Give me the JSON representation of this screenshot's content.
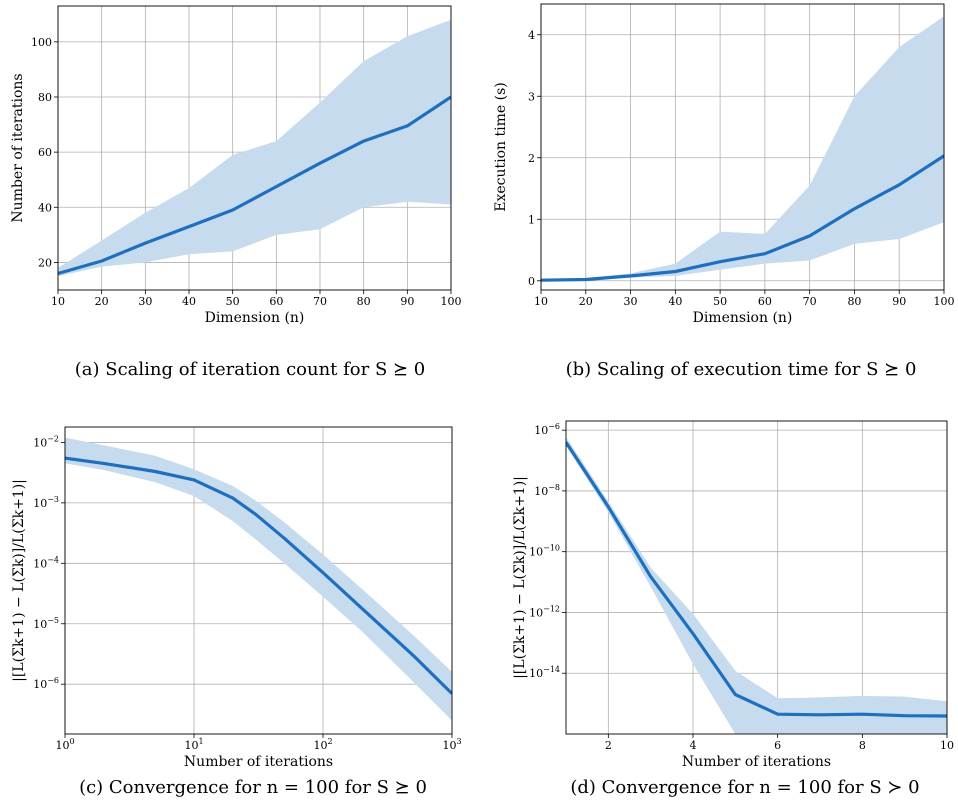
{
  "colors": {
    "line": "#1f6fbf",
    "band": "#c6dcee",
    "grid": "#b0b0b0"
  },
  "captions": [
    "(a) Scaling of iteration count for S ⪰ 0",
    "(b) Scaling of execution time for S ⪰ 0",
    "(c) Convergence for n = 100 for S ⪰ 0",
    "(d) Convergence for n = 100 for S ≻ 0"
  ],
  "chart_data": [
    {
      "type": "line",
      "xlabel": "Dimension (n)",
      "ylabel": "Number of iterations",
      "xlim": [
        10,
        100
      ],
      "ylim": [
        10,
        113
      ],
      "xticks": [
        10,
        20,
        30,
        40,
        50,
        60,
        70,
        80,
        90,
        100
      ],
      "yticks": [
        20,
        40,
        60,
        80,
        100
      ],
      "x": [
        10,
        20,
        30,
        40,
        50,
        60,
        70,
        80,
        90,
        100
      ],
      "mean": [
        16,
        20.5,
        27,
        33,
        39,
        47.5,
        56,
        64,
        69.5,
        80
      ],
      "upper": [
        18,
        28,
        38,
        47,
        59,
        64,
        78,
        93,
        102,
        108
      ],
      "lower": [
        15,
        18.5,
        20,
        23,
        24,
        30,
        32,
        40,
        42,
        41
      ]
    },
    {
      "type": "line",
      "xlabel": "Dimension (n)",
      "ylabel": "Execution time (s)",
      "xlim": [
        10,
        100
      ],
      "ylim": [
        -0.15,
        4.5
      ],
      "xticks": [
        10,
        20,
        30,
        40,
        50,
        60,
        70,
        80,
        90,
        100
      ],
      "yticks": [
        0,
        1,
        2,
        3,
        4
      ],
      "x": [
        10,
        20,
        30,
        40,
        50,
        60,
        70,
        80,
        90,
        100
      ],
      "mean": [
        0.01,
        0.02,
        0.08,
        0.15,
        0.31,
        0.44,
        0.73,
        1.17,
        1.56,
        2.03
      ],
      "upper": [
        0.02,
        0.04,
        0.12,
        0.28,
        0.8,
        0.76,
        1.55,
        3.0,
        3.8,
        4.3
      ],
      "lower": [
        0.0,
        0.01,
        0.05,
        0.08,
        0.18,
        0.28,
        0.33,
        0.6,
        0.68,
        0.95
      ]
    },
    {
      "type": "line",
      "xscale": "log",
      "yscale": "log",
      "xlabel": "Number of iterations",
      "ylabel": "|[L(Σk+1) − L(Σk)]/L(Σk+1)|",
      "xlim": [
        1,
        1000
      ],
      "ylim": [
        1.5e-07,
        0.018
      ],
      "xticks": [
        {
          "value": 1,
          "label": "10",
          "exp": "0"
        },
        {
          "value": 10,
          "label": "10",
          "exp": "1"
        },
        {
          "value": 100,
          "label": "10",
          "exp": "2"
        },
        {
          "value": 1000,
          "label": "10",
          "exp": "3"
        }
      ],
      "yticks": [
        {
          "value": 1e-06,
          "label": "10",
          "exp": "−6"
        },
        {
          "value": 1e-05,
          "label": "10",
          "exp": "−5"
        },
        {
          "value": 0.0001,
          "label": "10",
          "exp": "−4"
        },
        {
          "value": 0.001,
          "label": "10",
          "exp": "−3"
        },
        {
          "value": 0.01,
          "label": "10",
          "exp": "−2"
        }
      ],
      "x": [
        1,
        2,
        5,
        10,
        20,
        30,
        50,
        100,
        200,
        500,
        1000
      ],
      "mean": [
        0.0055,
        0.0045,
        0.0033,
        0.0024,
        0.0012,
        0.00065,
        0.00026,
        7e-05,
        1.8e-05,
        3e-06,
        7e-07
      ],
      "upper": [
        0.012,
        0.009,
        0.006,
        0.0036,
        0.0019,
        0.0011,
        0.00048,
        0.00014,
        3.8e-05,
        6.5e-06,
        1.6e-06
      ],
      "lower": [
        0.0045,
        0.0035,
        0.0022,
        0.0013,
        0.0005,
        0.00025,
        0.0001,
        2.8e-05,
        7.5e-06,
        1.1e-06,
        2.5e-07
      ]
    },
    {
      "type": "line",
      "yscale": "log",
      "xlabel": "Number of iterations",
      "ylabel": "|[L(Σk+1) − L(Σk)]/L(Σk+1)|",
      "xlim": [
        1,
        10
      ],
      "ylim": [
        1e-16,
        2e-06
      ],
      "xticks": [
        {
          "value": 2,
          "label": "2"
        },
        {
          "value": 4,
          "label": "4"
        },
        {
          "value": 6,
          "label": "6"
        },
        {
          "value": 8,
          "label": "8"
        },
        {
          "value": 10,
          "label": "10"
        }
      ],
      "yticks": [
        {
          "value": 1e-06,
          "label": "10",
          "exp": "−6"
        },
        {
          "value": 1e-08,
          "label": "10",
          "exp": "−8"
        },
        {
          "value": 1e-10,
          "label": "10",
          "exp": "−10"
        },
        {
          "value": 1e-12,
          "label": "10",
          "exp": "−12"
        },
        {
          "value": 1e-14,
          "label": "10",
          "exp": "−14"
        }
      ],
      "x": [
        1,
        2,
        3,
        4,
        5,
        6,
        7,
        8,
        9,
        10
      ],
      "mean": [
        4e-07,
        3e-09,
        1.5e-11,
        2e-13,
        2e-15,
        4.5e-16,
        4.3e-16,
        4.5e-16,
        4e-16,
        3.9e-16
      ],
      "upper": [
        6e-07,
        4.5e-09,
        3e-11,
        9e-13,
        1.2e-14,
        1.5e-15,
        1.6e-15,
        1.8e-15,
        1.7e-15,
        1.2e-15
      ],
      "lower": [
        3e-07,
        2e-09,
        7e-12,
        2e-14,
        1e-16,
        1e-16,
        1e-16,
        1e-16,
        1e-16,
        1e-16
      ]
    }
  ]
}
